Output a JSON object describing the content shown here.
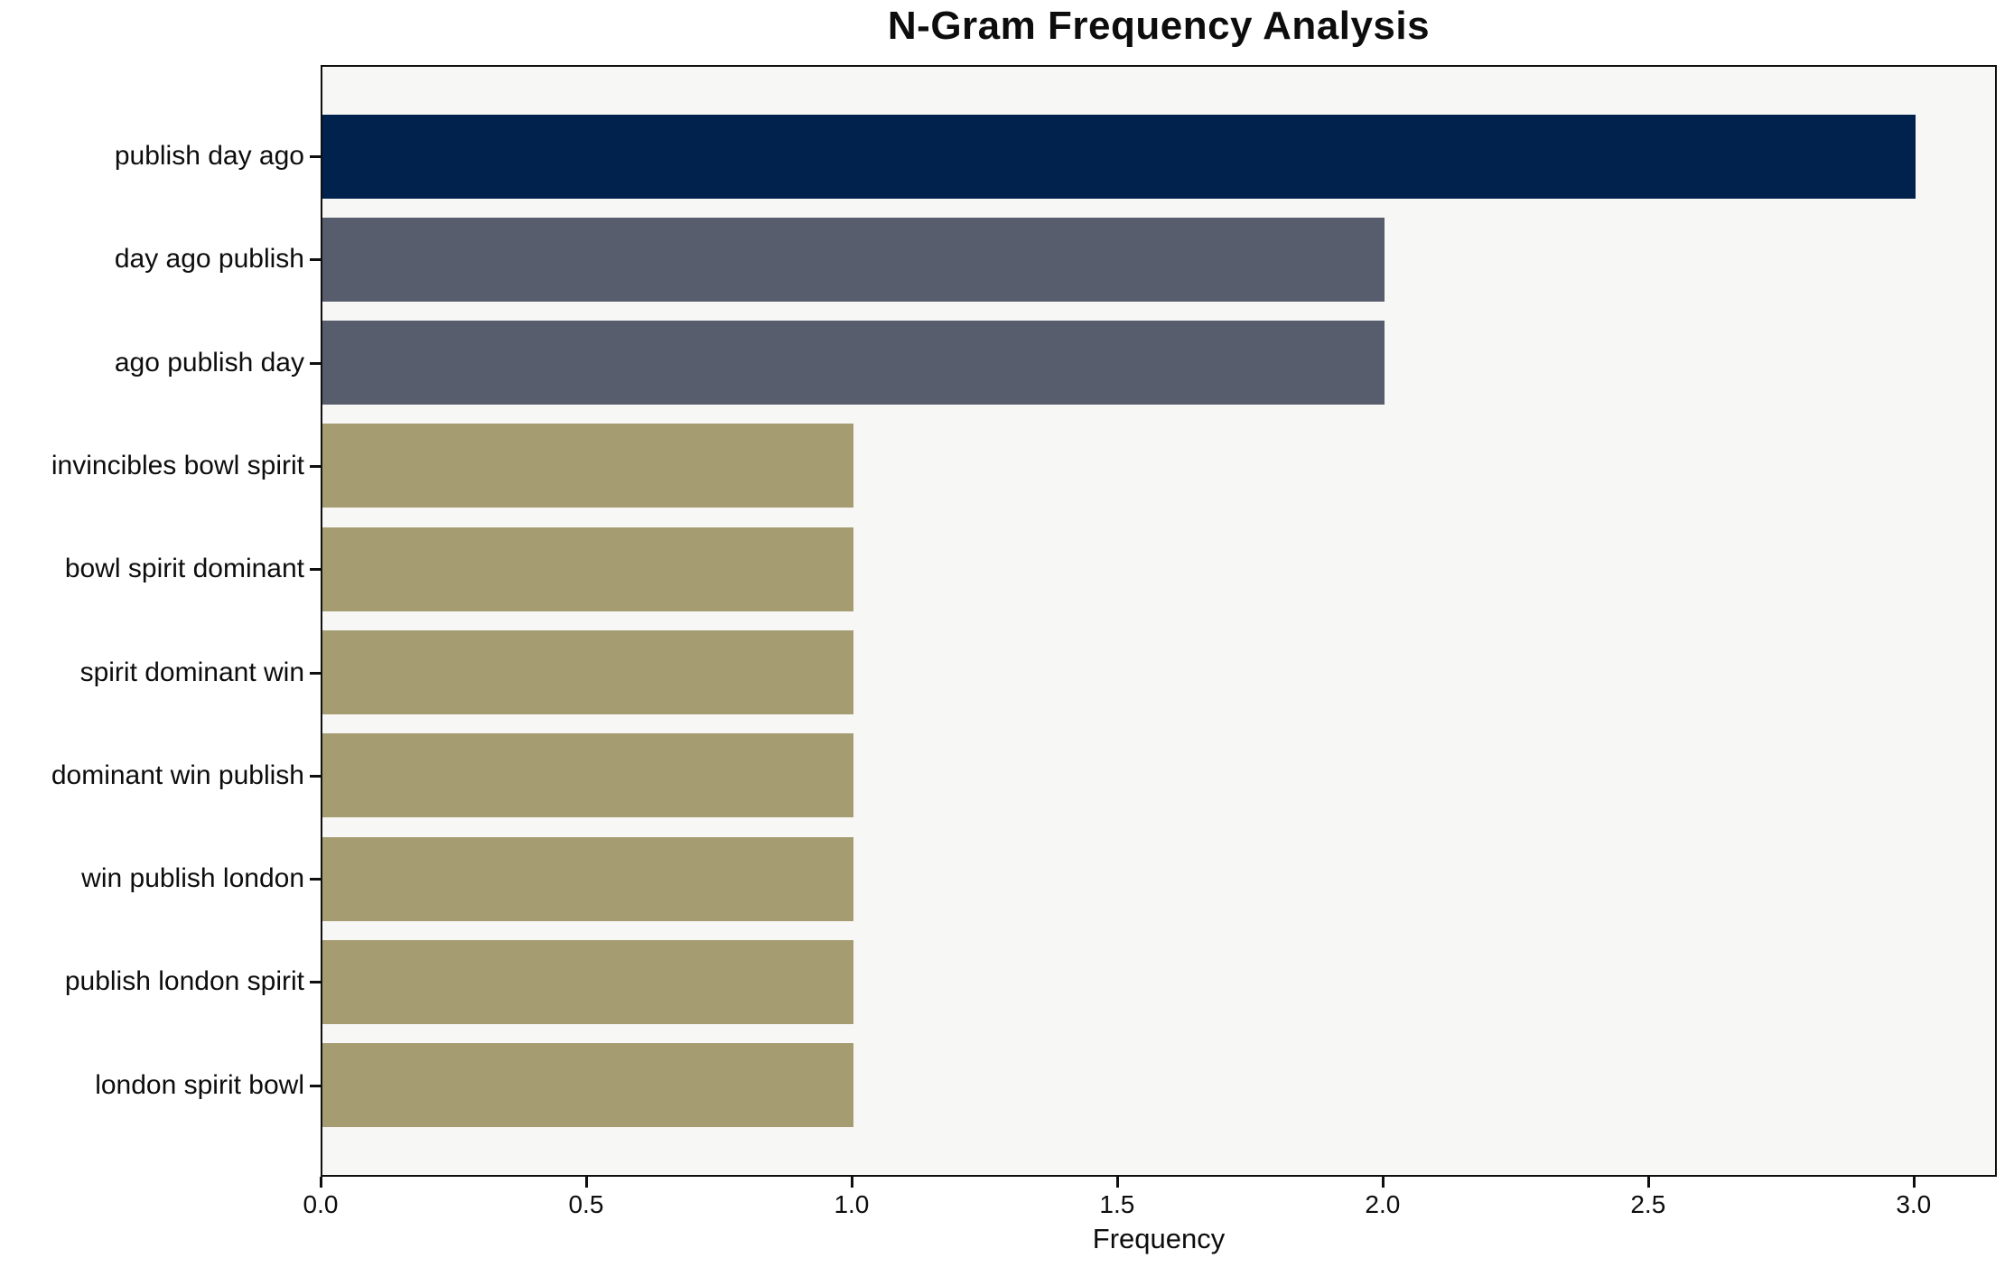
{
  "figure": {
    "background": "#ffffff",
    "plot_background": "#f7f7f6",
    "axis_color": "#0f0f0f",
    "text_color": "#0d0d0d"
  },
  "chart_data": {
    "type": "bar",
    "orientation": "horizontal",
    "title": "N-Gram Frequency Analysis",
    "xlabel": "Frequency",
    "ylabel": "",
    "categories": [
      "publish day ago",
      "day ago publish",
      "ago publish day",
      "invincibles bowl spirit",
      "bowl spirit dominant",
      "spirit dominant win",
      "dominant win publish",
      "win publish london",
      "publish london spirit",
      "london spirit bowl"
    ],
    "values": [
      3,
      2,
      2,
      1,
      1,
      1,
      1,
      1,
      1,
      1
    ],
    "bar_colors": [
      "#01224D",
      "#575D6C",
      "#575D6C",
      "#A69C71",
      "#A69C71",
      "#A69C71",
      "#A69C71",
      "#A69C71",
      "#A69C71",
      "#A69C71"
    ],
    "palette": {
      "navy": "#01224D",
      "slate": "#575D6C",
      "khaki": "#A69C71"
    },
    "xlim": [
      0,
      3.15
    ],
    "xticks": [
      "0.0",
      "0.5",
      "1.0",
      "1.5",
      "2.0",
      "2.5",
      "3.0"
    ],
    "xtick_values": [
      0,
      0.5,
      1.0,
      1.5,
      2.0,
      2.5,
      3.0
    ],
    "grid": false,
    "legend": "none",
    "bar_height_frac": 0.8
  }
}
